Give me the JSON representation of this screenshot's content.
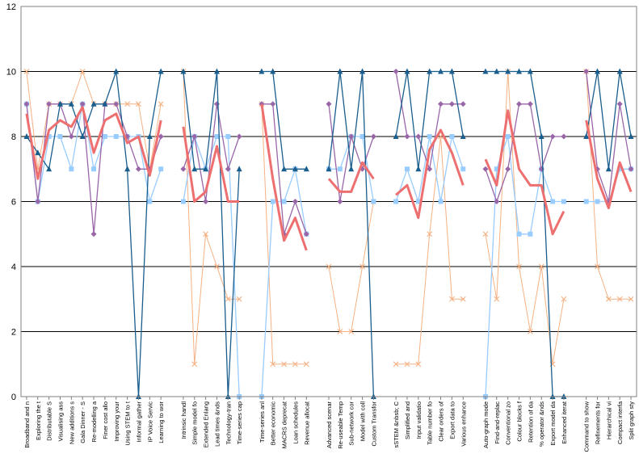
{
  "chart_data": {
    "type": "line",
    "title": "",
    "xlabel": "",
    "ylabel": "",
    "ylim": [
      0,
      12
    ],
    "yticks": [
      0,
      2,
      4,
      6,
      8,
      10,
      12
    ],
    "grid": "horizontal",
    "legend": "none",
    "groups": [
      {
        "categories": [
          "Broadband and n",
          "Exploring the t",
          "Distributable S",
          "Visualising ass",
          "New additions s",
          "Gala Dinner - S",
          "Re-modelling a",
          "Finer cost allo",
          "Improving your",
          "Using STEM to t",
          "Informal gather",
          "IP Voice Servic",
          "Learning to wor"
        ],
        "series": [
          {
            "values": [
              8,
              7.5,
              7,
              9,
              9,
              8,
              9,
              9,
              10,
              7,
              0,
              8,
              10
            ]
          },
          {
            "values": [
              9,
              6,
              8,
              8,
              7,
              9,
              7,
              8,
              8,
              8,
              8,
              6,
              7
            ]
          },
          {
            "values": [
              9,
              6,
              9,
              9,
              8,
              9,
              5,
              9,
              9,
              8,
              7,
              7,
              8
            ]
          },
          {
            "values": [
              10,
              7,
              9,
              9,
              9,
              10,
              9,
              9,
              9,
              9,
              9,
              7,
              9
            ]
          },
          {
            "values": [
              8.7,
              6.7,
              8.2,
              8.5,
              8.3,
              8.9,
              7.5,
              8.5,
              8.7,
              7.8,
              8,
              6.8,
              8.5
            ]
          }
        ]
      },
      {
        "categories": [
          "Intrinsic handl",
          "Simple model fo",
          "Extended Enlang",
          "Lead times &nds",
          "Technology-tran",
          "Time-series cap"
        ],
        "series": [
          {
            "values": [
              10,
              7,
              7,
              10,
              0,
              7
            ]
          },
          {
            "values": [
              6,
              8,
              7,
              8,
              8,
              0
            ]
          },
          {
            "values": [
              7,
              8,
              6,
              9,
              7,
              8
            ]
          },
          {
            "values": [
              10,
              1,
              5,
              4,
              3,
              3
            ]
          },
          {
            "values": [
              8.3,
              6,
              6.3,
              7.7,
              6,
              6
            ]
          }
        ]
      },
      {
        "categories": [
          "Time-series anl",
          "Better economic",
          "MACRS deprecat",
          "Loan schedules",
          "Revenue allocat"
        ],
        "series": [
          {
            "values": [
              10,
              10,
              7,
              7,
              7
            ]
          },
          {
            "values": [
              0,
              6,
              6,
              7,
              5
            ]
          },
          {
            "values": [
              9,
              9,
              5,
              6,
              5
            ]
          },
          {
            "values": [
              9,
              1,
              1,
              1,
              1
            ]
          },
          {
            "values": [
              9,
              6.7,
              4.8,
              5.5,
              4.5
            ]
          }
        ]
      },
      {
        "categories": [
          "Advanced scenar",
          "Re-useable Temp",
          "Sub-network cor",
          "Model with coll",
          "Custom Transfor"
        ],
        "series": [
          {
            "values": [
              7,
              10,
              7,
              10,
              0
            ]
          },
          {
            "values": [
              7,
              7,
              8,
              8,
              6
            ]
          },
          {
            "values": [
              9,
              6,
              8,
              7,
              8
            ]
          },
          {
            "values": [
              4,
              2,
              2,
              4,
              6
            ]
          },
          {
            "values": [
              6.7,
              6.3,
              6.3,
              7.2,
              6.7
            ]
          }
        ]
      },
      {
        "categories": [
          "sSTEM &nbsb; C",
          "Simplified and",
          "Input validatio",
          "Table number fo",
          "Clear orders of",
          "Export data to",
          "Various enhance"
        ],
        "series": [
          {
            "values": [
              8,
              10,
              7,
              10,
              10,
              10,
              8
            ]
          },
          {
            "values": [
              6,
              7,
              6,
              8,
              6,
              8,
              7
            ]
          },
          {
            "values": [
              10,
              8,
              8,
              7,
              9,
              9,
              9
            ]
          },
          {
            "values": [
              1,
              1,
              1,
              5,
              8,
              3,
              3
            ]
          },
          {
            "values": [
              6.2,
              6.5,
              5.5,
              7.6,
              8.2,
              7.5,
              6.5
            ]
          }
        ]
      },
      {
        "categories": [
          "Auto-graph mode",
          "Find-and-replac",
          "Conventional zo",
          "Colour blocks f",
          "Retention of da",
          "% operator &nds",
          "Export model da",
          "Enhanced iterat"
        ],
        "series": [
          {
            "values": [
              10,
              10,
              10,
              10,
              10,
              8,
              0,
              0
            ]
          },
          {
            "values": [
              0,
              7,
              8,
              5,
              5,
              7,
              6,
              6
            ]
          },
          {
            "values": [
              7,
              6,
              7,
              9,
              9,
              7,
              8,
              8
            ]
          },
          {
            "values": [
              5,
              3,
              10,
              4,
              2,
              4,
              1,
              3
            ]
          },
          {
            "values": [
              7.3,
              6.5,
              8.8,
              7,
              6.5,
              6.5,
              5,
              5.7
            ]
          }
        ]
      },
      {
        "categories": [
          "Command to show",
          "Refinements for",
          "Hierarchical vi",
          "Compact interfa",
          "Split graph sty"
        ],
        "series": [
          {
            "values": [
              8,
              10,
              7,
              10,
              8
            ]
          },
          {
            "values": [
              6,
              6,
              6,
              7,
              7
            ]
          },
          {
            "values": [
              10,
              7,
              6,
              9,
              7
            ]
          },
          {
            "values": [
              10,
              4,
              3,
              3,
              3
            ]
          },
          {
            "values": [
              8.5,
              6.7,
              5.8,
              7.2,
              6.3
            ]
          }
        ]
      }
    ],
    "series_styles": [
      {
        "color": "#1a5e8e",
        "marker": "triangle"
      },
      {
        "color": "#99ccff",
        "marker": "square"
      },
      {
        "color": "#9966a8",
        "marker": "diamond"
      },
      {
        "color": "#f4b183",
        "marker": "x"
      },
      {
        "color": "#ee6f6f",
        "marker": "none"
      }
    ]
  }
}
